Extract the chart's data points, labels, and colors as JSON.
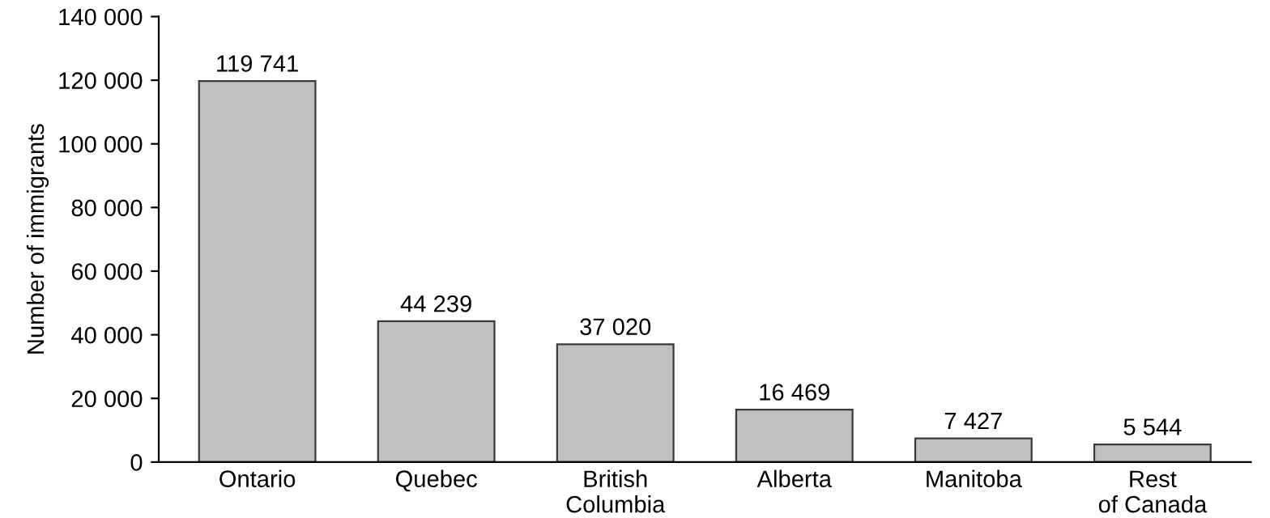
{
  "chart_data": {
    "type": "bar",
    "ylabel": "Number of immigrants",
    "categories": [
      "Ontario",
      "Quebec",
      "British\nColumbia",
      "Alberta",
      "Manitoba",
      "Rest\nof Canada"
    ],
    "values": [
      119741,
      44239,
      37020,
      16469,
      7427,
      5544
    ],
    "value_labels": [
      "119 741",
      "44 239",
      "37 020",
      "16 469",
      "7 427",
      "5 544"
    ],
    "color": "#c0c0c2",
    "ylim": [
      0,
      140000
    ],
    "yticks": [
      0,
      {
        "value": 20000,
        "label": "20 000"
      },
      {
        "value": 40000,
        "label": "40 000"
      },
      {
        "value": 60000,
        "label": "60 000"
      },
      {
        "value": 80000,
        "label": "80 000"
      },
      {
        "value": 100000,
        "label": "100 000"
      },
      {
        "value": 120000,
        "label": "120 000"
      },
      {
        "value": 140000,
        "label": "140 000"
      }
    ],
    "grid": false,
    "legend": false
  }
}
